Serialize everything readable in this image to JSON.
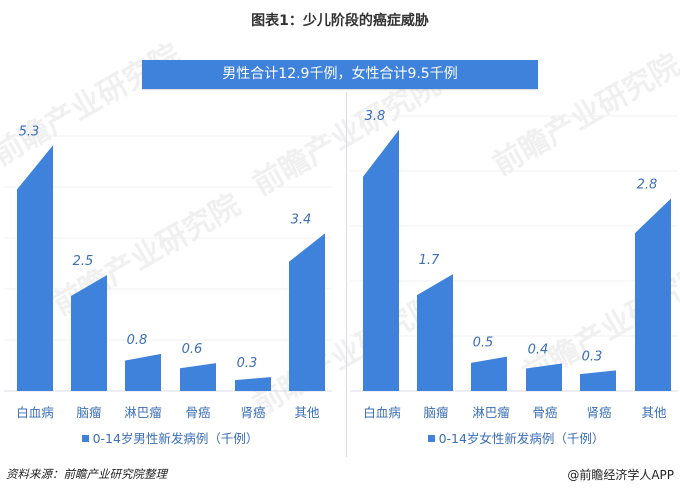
{
  "title": "图表1：少儿阶段的癌症威胁",
  "banner": "男性合计12.9千例，女性合计9.5千例",
  "watermark": "前瞻产业研究院",
  "footer": {
    "source": "资料来源：前瞻产业研究院整理",
    "credit": "@前瞻经济学人APP"
  },
  "colors": {
    "bar": "#3e82dc",
    "label": "#3b6fb8",
    "banner": "#3e82dc"
  },
  "left": {
    "legend": "0-14岁男性新发病例（千例）",
    "categories": [
      "白血病",
      "脑瘤",
      "淋巴瘤",
      "骨癌",
      "肾癌",
      "其他"
    ],
    "values": [
      "5.3",
      "2.5",
      "0.8",
      "0.6",
      "0.3",
      "3.4"
    ]
  },
  "right": {
    "legend": "0-14岁女性新发病例（千例）",
    "categories": [
      "白血病",
      "脑瘤",
      "淋巴瘤",
      "骨癌",
      "肾癌",
      "其他"
    ],
    "values": [
      "3.8",
      "1.7",
      "0.5",
      "0.4",
      "0.3",
      "2.8"
    ]
  },
  "chart_data": [
    {
      "type": "bar",
      "title": "图表1：少儿阶段的癌症威胁",
      "subtitle": "男性合计12.9千例",
      "categories": [
        "白血病",
        "脑瘤",
        "淋巴瘤",
        "骨癌",
        "肾癌",
        "其他"
      ],
      "series": [
        {
          "name": "0-14岁男性新发病例（千例）",
          "values": [
            5.3,
            2.5,
            0.8,
            0.6,
            0.3,
            3.4
          ]
        }
      ],
      "xlabel": "",
      "ylabel": "",
      "ylim": [
        0,
        5.5
      ],
      "grid": true,
      "legend_position": "bottom"
    },
    {
      "type": "bar",
      "title": "图表1：少儿阶段的癌症威胁",
      "subtitle": "女性合计9.5千例",
      "categories": [
        "白血病",
        "脑瘤",
        "淋巴瘤",
        "骨癌",
        "肾癌",
        "其他"
      ],
      "series": [
        {
          "name": "0-14岁女性新发病例（千例）",
          "values": [
            3.8,
            1.7,
            0.5,
            0.4,
            0.3,
            2.8
          ]
        }
      ],
      "xlabel": "",
      "ylabel": "",
      "ylim": [
        0,
        4.0
      ],
      "grid": true,
      "legend_position": "bottom"
    }
  ]
}
